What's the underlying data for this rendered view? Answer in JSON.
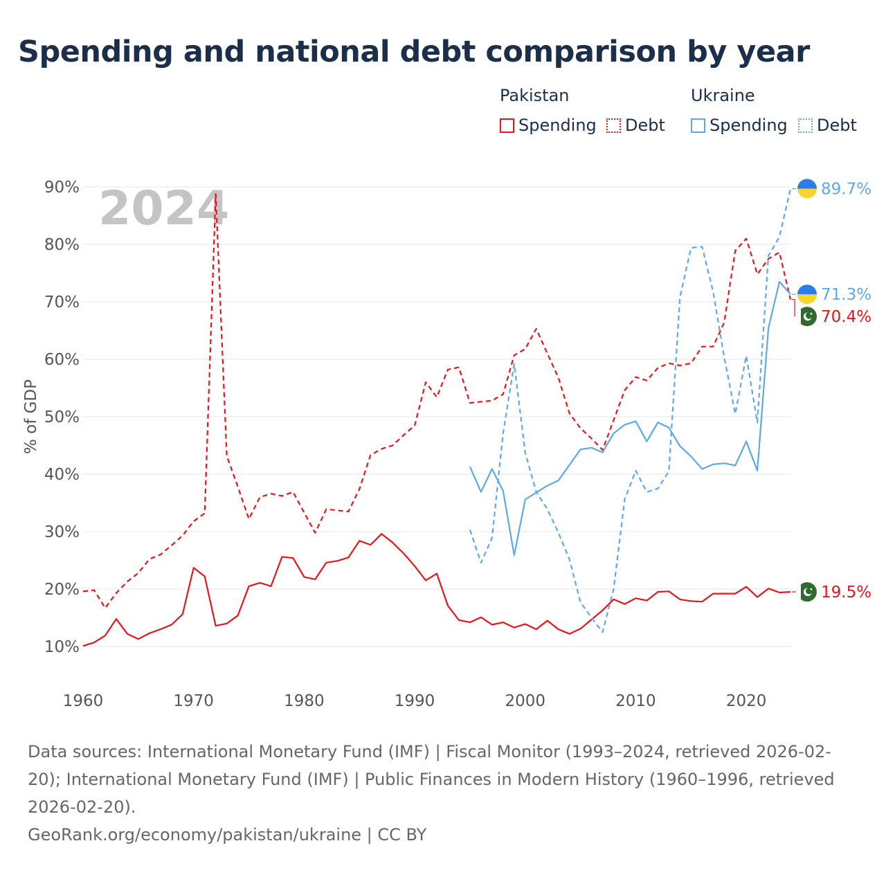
{
  "title": "Spending and national debt comparison by year",
  "legend": {
    "pakistan_label": "Pakistan",
    "ukraine_label": "Ukraine",
    "spending_label": "Spending",
    "debt_label": "Debt"
  },
  "colors": {
    "pakistan": "#e8141b",
    "ukraine": "#5ea8e8",
    "grid": "#e6e6e6",
    "year_watermark": "#c4c4c4"
  },
  "year_watermark": "2024",
  "chart_data": {
    "type": "line",
    "ylabel": "% of GDP",
    "xlabel": "",
    "xlim": [
      1960,
      2024
    ],
    "ylim": [
      10,
      90
    ],
    "x_ticks": [
      1960,
      1970,
      1980,
      1990,
      2000,
      2010,
      2020
    ],
    "x_tick_labels": [
      "1960",
      "1970",
      "1980",
      "1990",
      "2000",
      "2010",
      "2020"
    ],
    "y_ticks": [
      10,
      20,
      30,
      40,
      50,
      60,
      70,
      80,
      90
    ],
    "y_tick_labels": [
      "10%",
      "20%",
      "30%",
      "40%",
      "50%",
      "60%",
      "70%",
      "80%",
      "90%"
    ],
    "series": [
      {
        "name": "Pakistan Debt",
        "country": "pakistan",
        "style": "dashed",
        "start_year": 1960,
        "values": [
          19.6,
          19.8,
          16.7,
          19.3,
          21.3,
          22.8,
          25.2,
          26.0,
          27.6,
          29.3,
          31.8,
          33.2,
          88.8,
          43.2,
          37.8,
          32.2,
          36.0,
          36.6,
          36.2,
          36.9,
          33.3,
          29.8,
          33.9,
          33.7,
          33.5,
          37.4,
          43.3,
          44.4,
          45.0,
          46.8,
          48.5,
          56.0,
          53.4,
          58.2,
          58.6,
          52.4,
          52.6,
          52.8,
          53.9,
          60.7,
          61.8,
          65.3,
          61.0,
          56.8,
          50.6,
          48.0,
          46.2,
          44.2,
          49.4,
          54.6,
          56.9,
          56.3,
          58.5,
          59.3,
          58.9,
          59.3,
          62.2,
          62.2,
          66.4,
          78.9,
          81.0,
          74.8,
          77.5,
          78.6,
          70.4
        ]
      },
      {
        "name": "Pakistan Spending",
        "country": "pakistan",
        "style": "solid",
        "start_year": 1960,
        "values": [
          10.1,
          10.7,
          11.9,
          14.8,
          12.2,
          11.3,
          12.3,
          13.0,
          13.8,
          15.6,
          23.7,
          22.2,
          13.6,
          14.0,
          15.4,
          20.5,
          21.1,
          20.5,
          25.6,
          25.4,
          22.1,
          21.7,
          24.6,
          24.9,
          25.5,
          28.4,
          27.7,
          29.6,
          28.1,
          26.2,
          24.0,
          21.5,
          22.7,
          17.1,
          14.6,
          14.2,
          15.1,
          13.8,
          14.2,
          13.3,
          13.9,
          13.0,
          14.5,
          13.0,
          12.2,
          13.1,
          14.7,
          16.3,
          18.2,
          17.4,
          18.4,
          18.0,
          19.5,
          19.6,
          18.2,
          17.9,
          17.8,
          19.2,
          19.2,
          19.2,
          20.4,
          18.6,
          20.1,
          19.4,
          19.5
        ]
      },
      {
        "name": "Ukraine Debt",
        "country": "ukraine",
        "style": "dashed",
        "start_year": 1995,
        "values": [
          30.3,
          24.6,
          28.9,
          47.1,
          59.2,
          43.7,
          36.9,
          33.9,
          29.8,
          25.2,
          17.7,
          15.0,
          12.5,
          20.0,
          35.6,
          40.6,
          36.9,
          37.5,
          40.5,
          70.8,
          79.4,
          79.6,
          71.8,
          60.4,
          50.5,
          60.6,
          49.0,
          78.0,
          81.3,
          89.7
        ]
      },
      {
        "name": "Ukraine Spending",
        "country": "ukraine",
        "style": "solid",
        "start_year": 1995,
        "values": [
          41.3,
          36.9,
          40.9,
          37.1,
          25.9,
          35.6,
          36.8,
          38.0,
          38.9,
          41.6,
          44.3,
          44.6,
          43.8,
          47.1,
          48.6,
          49.2,
          45.7,
          49.0,
          48.1,
          44.9,
          43.1,
          40.9,
          41.7,
          41.9,
          41.5,
          45.7,
          40.6,
          65.4,
          73.5,
          71.3
        ]
      }
    ],
    "end_labels": [
      {
        "series": "Ukraine Debt",
        "text": "89.7%"
      },
      {
        "series": "Ukraine Spending",
        "text": "71.3%"
      },
      {
        "series": "Pakistan Debt",
        "text": "70.4%"
      },
      {
        "series": "Pakistan Spending",
        "text": "19.5%"
      }
    ]
  },
  "footer": {
    "sources": "Data sources: International Monetary Fund (IMF) | Fiscal Monitor (1993–2024, retrieved 2026-02-20); International Monetary Fund (IMF) | Public Finances in Modern History (1960–1996, retrieved 2026-02-20).",
    "credit": "GeoRank.org/economy/pakistan/ukraine | CC BY"
  }
}
